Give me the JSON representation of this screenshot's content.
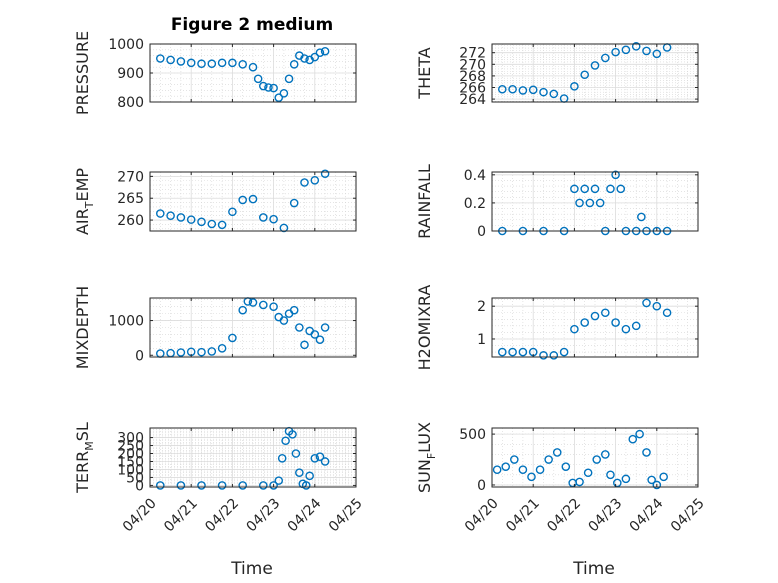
{
  "figure": {
    "title": "Figure 2 medium",
    "xlabel": "Time",
    "x_tick_labels": [
      "04/20",
      "04/21",
      "04/22",
      "04/23",
      "04/24",
      "04/25"
    ],
    "marker_color": "#0072BD"
  },
  "chart_data": [
    {
      "type": "scatter",
      "ylabel": "PRESSURE",
      "x_range": [
        "04/20",
        "04/25"
      ],
      "ylim": [
        800,
        1000
      ],
      "yticks": [
        800,
        900,
        1000
      ],
      "grid": true,
      "series": [
        {
          "x": [
            "04/20 06:00",
            "04/20 12:00",
            "04/20 18:00",
            "04/21 00:00",
            "04/21 06:00",
            "04/21 12:00",
            "04/21 18:00",
            "04/22 00:00",
            "04/22 06:00",
            "04/22 12:00",
            "04/22 15:00",
            "04/22 18:00",
            "04/22 21:00",
            "04/23 00:00",
            "04/23 03:00",
            "04/23 06:00",
            "04/23 09:00",
            "04/23 12:00",
            "04/23 15:00",
            "04/23 18:00",
            "04/23 21:00",
            "04/24 00:00",
            "04/24 03:00",
            "04/24 06:00"
          ],
          "y": [
            950,
            945,
            940,
            935,
            932,
            932,
            935,
            935,
            930,
            920,
            880,
            855,
            850,
            848,
            815,
            830,
            880,
            930,
            960,
            950,
            945,
            955,
            970,
            975
          ]
        }
      ]
    },
    {
      "type": "scatter",
      "ylabel": "THETA",
      "x_range": [
        "04/20",
        "04/25"
      ],
      "ylim": [
        263.5,
        273.5
      ],
      "yticks": [
        264,
        266,
        268,
        270,
        272
      ],
      "grid": true,
      "series": [
        {
          "x": [
            "04/20 06:00",
            "04/20 12:00",
            "04/20 18:00",
            "04/21 00:00",
            "04/21 06:00",
            "04/21 12:00",
            "04/21 18:00",
            "04/22 00:00",
            "04/22 06:00",
            "04/22 12:00",
            "04/22 18:00",
            "04/23 00:00",
            "04/23 06:00",
            "04/23 12:00",
            "04/23 18:00",
            "04/24 00:00",
            "04/24 06:00"
          ],
          "y": [
            265.7,
            265.7,
            265.5,
            265.6,
            265.2,
            264.9,
            264.1,
            266.2,
            268.2,
            269.8,
            271.1,
            272.1,
            272.5,
            273.1,
            272.3,
            271.8,
            272.9
          ]
        }
      ]
    },
    {
      "type": "scatter",
      "ylabel": "AIR_TEMP",
      "x_range": [
        "04/20",
        "04/25"
      ],
      "ylim": [
        257.5,
        271
      ],
      "yticks": [
        260,
        265,
        270
      ],
      "grid": true,
      "series": [
        {
          "x": [
            "04/20 06:00",
            "04/20 12:00",
            "04/20 18:00",
            "04/21 00:00",
            "04/21 06:00",
            "04/21 12:00",
            "04/21 18:00",
            "04/22 00:00",
            "04/22 06:00",
            "04/22 12:00",
            "04/22 18:00",
            "04/23 00:00",
            "04/23 06:00",
            "04/23 12:00",
            "04/23 18:00",
            "04/24 00:00",
            "04/24 06:00"
          ],
          "y": [
            261.5,
            261.0,
            260.6,
            260.1,
            259.6,
            259.1,
            258.9,
            261.9,
            264.6,
            264.8,
            260.6,
            260.2,
            258.2,
            263.9,
            268.6,
            269.1,
            270.6
          ]
        }
      ]
    },
    {
      "type": "scatter",
      "ylabel": "RAINFALL",
      "x_range": [
        "04/20",
        "04/25"
      ],
      "ylim": [
        0,
        0.42
      ],
      "yticks": [
        0,
        0.2,
        0.4
      ],
      "grid": true,
      "series": [
        {
          "x": [
            "04/20 06:00",
            "04/20 18:00",
            "04/21 06:00",
            "04/21 18:00",
            "04/22 00:00",
            "04/22 03:00",
            "04/22 06:00",
            "04/22 09:00",
            "04/22 12:00",
            "04/22 15:00",
            "04/22 18:00",
            "04/22 21:00",
            "04/23 00:00",
            "04/23 03:00",
            "04/23 06:00",
            "04/23 12:00",
            "04/23 15:00",
            "04/23 18:00",
            "04/24 00:00",
            "04/24 06:00"
          ],
          "y": [
            0,
            0,
            0,
            0,
            0.3,
            0.2,
            0.3,
            0.2,
            0.3,
            0.2,
            0,
            0.3,
            0.4,
            0.3,
            0,
            0,
            0.1,
            0,
            0,
            0
          ]
        }
      ]
    },
    {
      "type": "scatter",
      "ylabel": "MIXDEPTH",
      "x_range": [
        "04/20",
        "04/25"
      ],
      "ylim": [
        -50,
        1650
      ],
      "yticks": [
        0,
        1000
      ],
      "grid": true,
      "series": [
        {
          "x": [
            "04/20 06:00",
            "04/20 12:00",
            "04/20 18:00",
            "04/21 00:00",
            "04/21 06:00",
            "04/21 12:00",
            "04/21 18:00",
            "04/22 00:00",
            "04/22 06:00",
            "04/22 09:00",
            "04/22 12:00",
            "04/22 18:00",
            "04/23 00:00",
            "04/23 03:00",
            "04/23 06:00",
            "04/23 09:00",
            "04/23 12:00",
            "04/23 15:00",
            "04/23 18:00",
            "04/23 21:00",
            "04/24 00:00",
            "04/24 03:00",
            "04/24 06:00"
          ],
          "y": [
            50,
            60,
            80,
            100,
            90,
            110,
            200,
            500,
            1300,
            1550,
            1520,
            1450,
            1400,
            1100,
            1000,
            1200,
            1300,
            800,
            300,
            700,
            600,
            450,
            800
          ]
        }
      ]
    },
    {
      "type": "scatter",
      "ylabel": "H2OMIXRA",
      "x_range": [
        "04/20",
        "04/25"
      ],
      "ylim": [
        0.45,
        2.25
      ],
      "yticks": [
        1,
        2
      ],
      "grid": true,
      "series": [
        {
          "x": [
            "04/20 06:00",
            "04/20 12:00",
            "04/20 18:00",
            "04/21 00:00",
            "04/21 06:00",
            "04/21 12:00",
            "04/21 18:00",
            "04/22 00:00",
            "04/22 06:00",
            "04/22 12:00",
            "04/22 18:00",
            "04/23 00:00",
            "04/23 06:00",
            "04/23 12:00",
            "04/23 18:00",
            "04/24 00:00",
            "04/24 06:00"
          ],
          "y": [
            0.6,
            0.6,
            0.6,
            0.6,
            0.5,
            0.5,
            0.6,
            1.3,
            1.5,
            1.7,
            1.8,
            1.5,
            1.3,
            1.4,
            2.1,
            2.0,
            1.8
          ]
        }
      ]
    },
    {
      "type": "scatter",
      "ylabel": "TERR_MSL",
      "x_range": [
        "04/20",
        "04/25"
      ],
      "ylim": [
        -10,
        360
      ],
      "yticks": [
        0,
        50,
        100,
        150,
        200,
        250,
        300
      ],
      "grid": true,
      "series": [
        {
          "x": [
            "04/20 06:00",
            "04/20 18:00",
            "04/21 06:00",
            "04/21 18:00",
            "04/22 06:00",
            "04/22 18:00",
            "04/23 00:00",
            "04/23 03:00",
            "04/23 05:00",
            "04/23 07:00",
            "04/23 09:00",
            "04/23 11:00",
            "04/23 13:00",
            "04/23 15:00",
            "04/23 17:00",
            "04/23 19:00",
            "04/23 21:00",
            "04/24 00:00",
            "04/24 03:00",
            "04/24 06:00"
          ],
          "y": [
            0,
            0,
            0,
            0,
            0,
            0,
            0,
            30,
            170,
            280,
            340,
            320,
            200,
            80,
            10,
            0,
            60,
            170,
            180,
            150
          ]
        }
      ]
    },
    {
      "type": "scatter",
      "ylabel": "SUN_FLUX",
      "x_range": [
        "04/20",
        "04/25"
      ],
      "ylim": [
        -20,
        560
      ],
      "yticks": [
        0,
        500
      ],
      "grid": true,
      "series": [
        {
          "x": [
            "04/20 03:00",
            "04/20 08:00",
            "04/20 13:00",
            "04/20 18:00",
            "04/20 23:00",
            "04/21 04:00",
            "04/21 09:00",
            "04/21 14:00",
            "04/21 19:00",
            "04/21 23:00",
            "04/22 03:00",
            "04/22 08:00",
            "04/22 13:00",
            "04/22 18:00",
            "04/22 21:00",
            "04/23 01:00",
            "04/23 06:00",
            "04/23 10:00",
            "04/23 14:00",
            "04/23 18:00",
            "04/23 21:00",
            "04/24 00:00",
            "04/24 04:00"
          ],
          "y": [
            150,
            180,
            250,
            150,
            80,
            150,
            250,
            320,
            180,
            20,
            30,
            120,
            250,
            300,
            100,
            20,
            60,
            450,
            500,
            320,
            50,
            0,
            80
          ]
        }
      ]
    }
  ]
}
